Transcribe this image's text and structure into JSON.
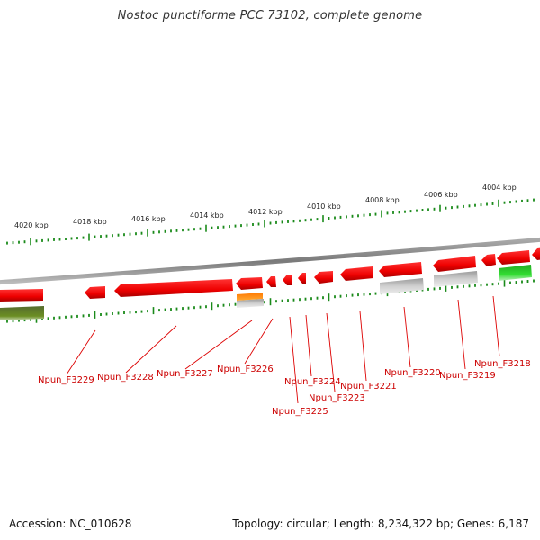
{
  "header": {
    "title": "Nostoc punctiforme PCC 73102, complete genome"
  },
  "footer": {
    "accession": "Accession: NC_010628",
    "summary": "Topology: circular; Length: 8,234,322 bp; Genes: 6,187"
  },
  "scale_labels": [
    "4020 kbp",
    "4018 kbp",
    "4016 kbp",
    "4014 kbp",
    "4012 kbp",
    "4010 kbp",
    "4008 kbp",
    "4006 kbp",
    "4004 kbp"
  ],
  "gene_labels": [
    "Npun_F3229",
    "Npun_F3228",
    "Npun_F3227",
    "Npun_F3226",
    "Npun_F3225",
    "Npun_F3224",
    "Npun_F3223",
    "Npun_F3221",
    "Npun_F3220",
    "Npun_F3219",
    "Npun_F3218"
  ],
  "colors": {
    "gene": "#ff1a1a",
    "backbone": "#8a8a8a",
    "tick": "#1a8a1a",
    "label": "#cc0000",
    "feature_dark_green": "#6b8e23",
    "feature_green": "#33cc33",
    "feature_orange": "#ff8c00",
    "feature_gray": "#bbbbbb"
  }
}
